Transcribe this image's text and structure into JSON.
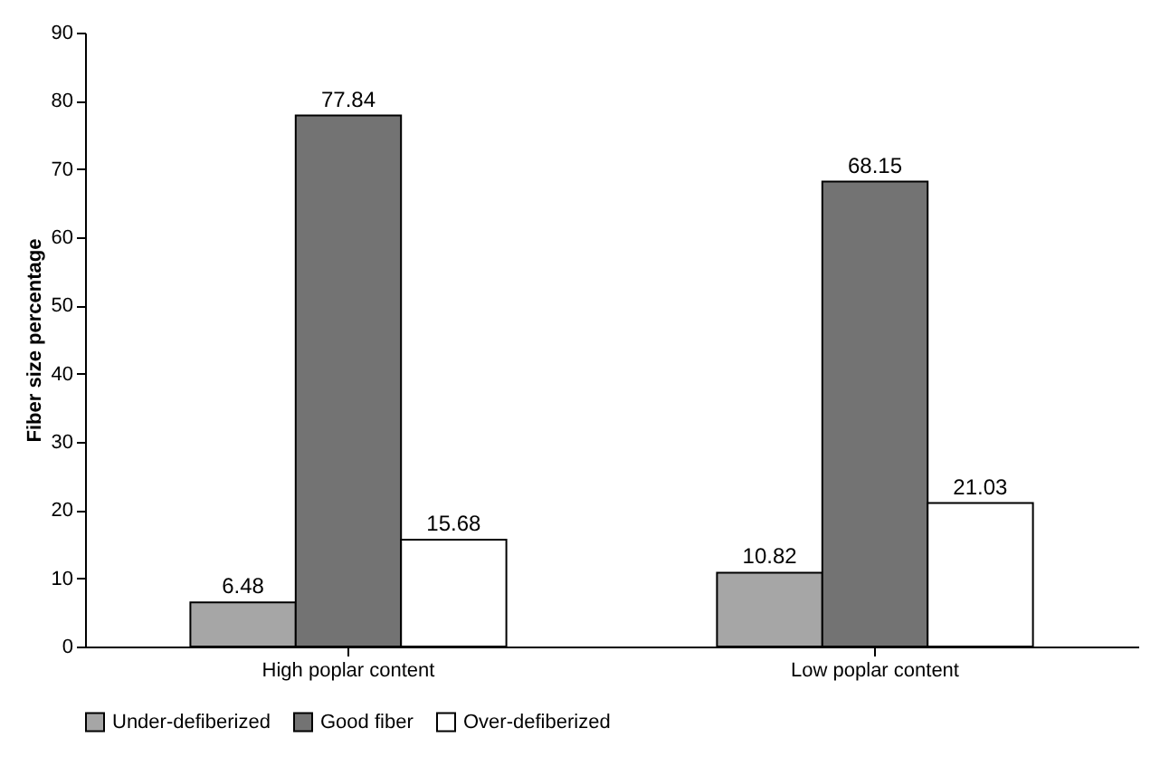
{
  "chart_data": {
    "type": "bar",
    "ylabel": "Fiber size percentage",
    "categories": [
      "High poplar content",
      "Low poplar content"
    ],
    "series": [
      {
        "name": "Under-defiberized",
        "color": "#a6a6a6",
        "values": [
          6.48,
          10.82
        ]
      },
      {
        "name": "Good fiber",
        "color": "#737373",
        "values": [
          77.84,
          68.15
        ]
      },
      {
        "name": "Over-defiberized",
        "color": "#ffffff",
        "values": [
          15.68,
          21.03
        ]
      }
    ],
    "ylim": [
      0,
      90
    ],
    "yticks": [
      0,
      10,
      20,
      30,
      40,
      50,
      60,
      70,
      80,
      90
    ],
    "grid": false,
    "legend": "bottom",
    "data_labels": true
  }
}
